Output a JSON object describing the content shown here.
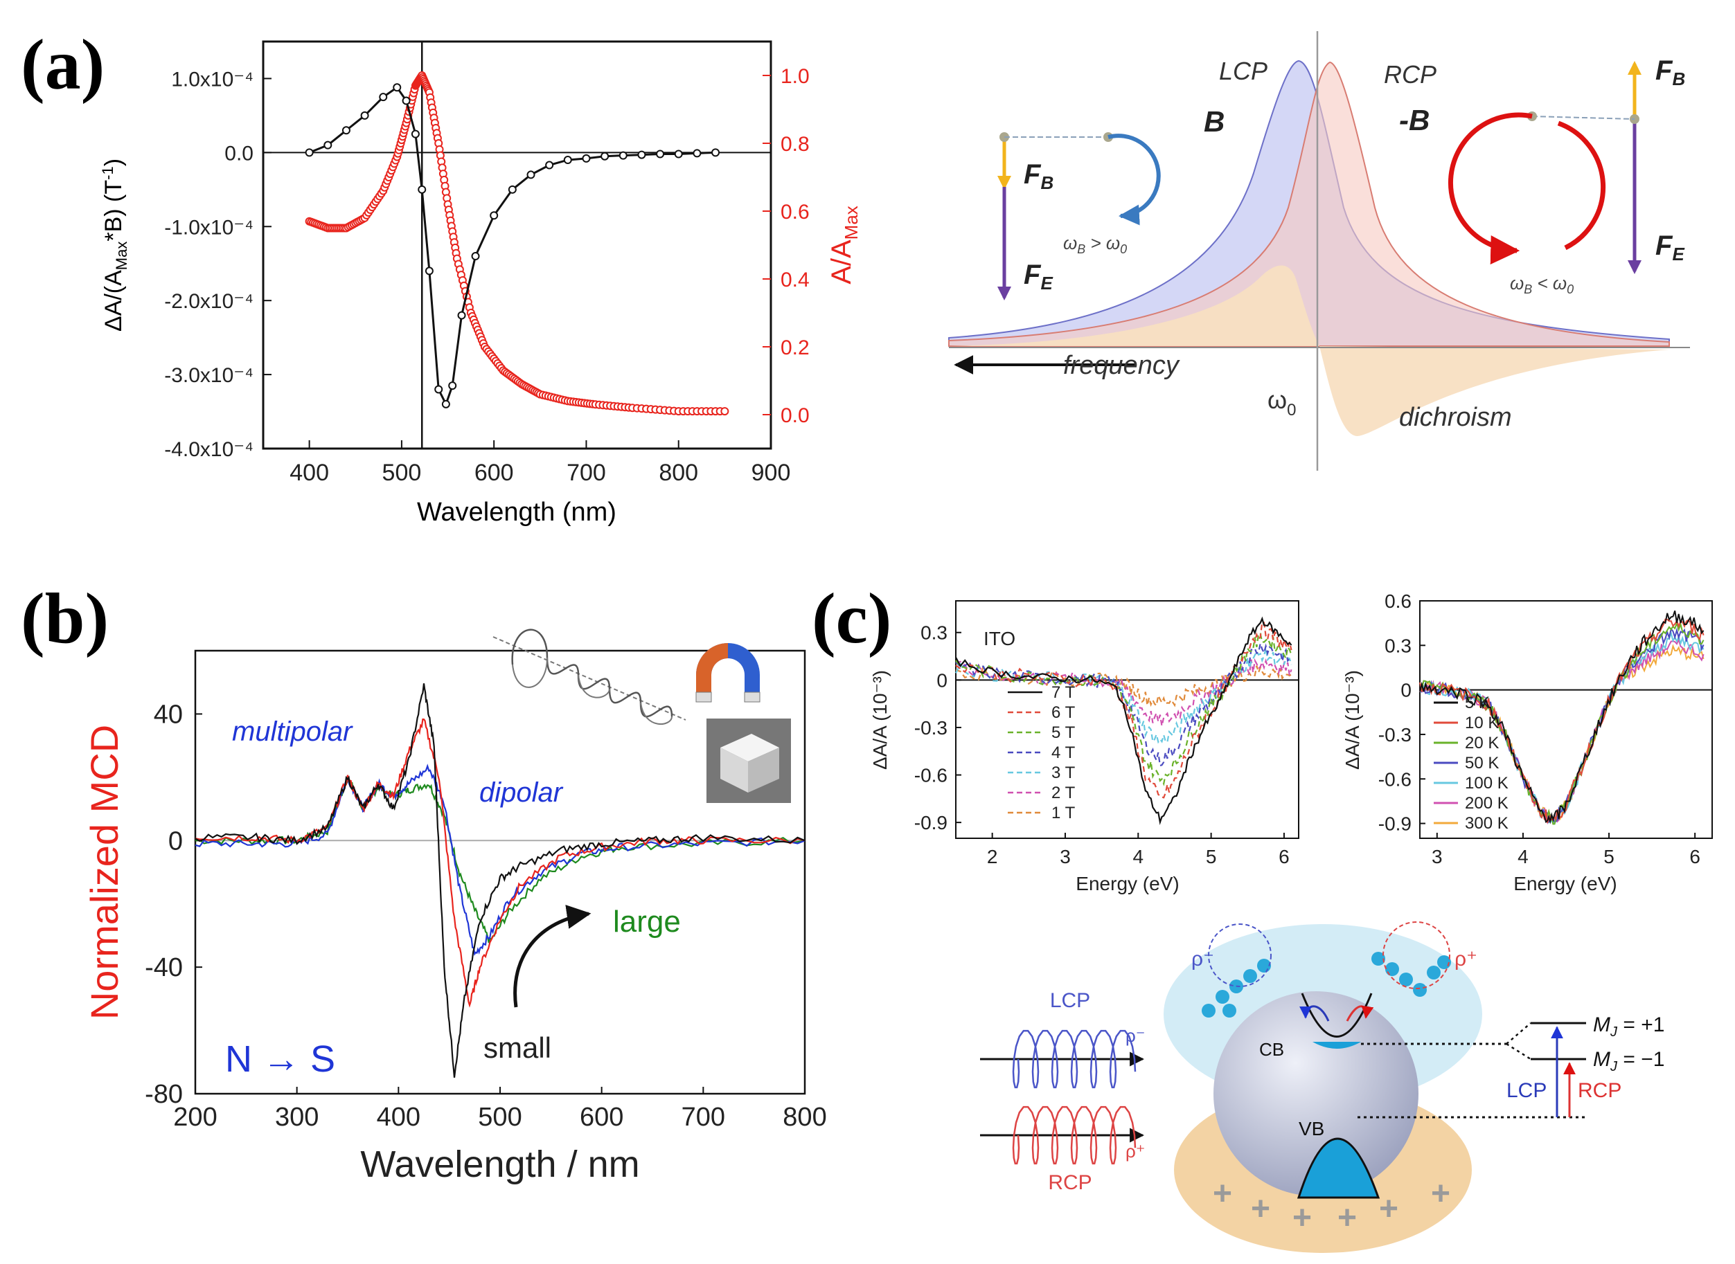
{
  "panel_labels": {
    "a": "(a)",
    "b": "(b)",
    "c": "(c)"
  },
  "colors": {
    "red": "#e8241d",
    "black": "#111111",
    "blue": "#1f35d6",
    "green": "#1e8a1e",
    "lcp_fill": "#c6c9f3",
    "rcp_fill": "#f6c9c2",
    "dichroism_fill": "#f8dfc2",
    "arrow_yellow": "#f2b41c",
    "arrow_purple": "#6a3fa0"
  },
  "chart_data": [
    {
      "id": "a-left",
      "type": "line",
      "xlabel": "Wavelength  (nm)",
      "ylabel_left": "ΔA/(A_Max*B) (T⁻¹)",
      "ylabel_right": "A/A_Max",
      "xlim": [
        350,
        900
      ],
      "ylim_left": [
        -0.0004,
        0.00015
      ],
      "ylim_right": [
        -0.1,
        1.1
      ],
      "x_ticks": [
        "400",
        "500",
        "600",
        "700",
        "800",
        "900"
      ],
      "y_ticks_left": [
        "1.0x10⁻⁴",
        "0.0",
        "-1.0x10⁻⁴",
        "-2.0x10⁻⁴",
        "-3.0x10⁻⁴",
        "-4.0x10⁻⁴"
      ],
      "y_ticks_right": [
        "1.0",
        "0.8",
        "0.6",
        "0.4",
        "0.2",
        "0.0"
      ],
      "vertical_line_x": 522,
      "series": [
        {
          "name": "ΔA/(A_Max*B)",
          "axis": "left",
          "color": "#111111",
          "x": [
            400,
            420,
            440,
            460,
            480,
            495,
            505,
            515,
            522,
            530,
            540,
            548,
            555,
            565,
            580,
            600,
            620,
            640,
            660,
            680,
            700,
            720,
            740,
            760,
            780,
            800,
            820,
            840
          ],
          "y": [
            0.0,
            1e-05,
            3e-05,
            5e-05,
            7.5e-05,
            8.8e-05,
            7e-05,
            2.5e-05,
            -5e-05,
            -0.00016,
            -0.00032,
            -0.00034,
            -0.000315,
            -0.00022,
            -0.00014,
            -8.5e-05,
            -5e-05,
            -3e-05,
            -1.7e-05,
            -1e-05,
            -8e-06,
            -5e-06,
            -4e-06,
            -3e-06,
            -2e-06,
            -2e-06,
            -1e-06,
            0.0
          ]
        },
        {
          "name": "A/A_Max",
          "axis": "right",
          "color": "#e8241d",
          "x": [
            400,
            420,
            440,
            460,
            480,
            495,
            505,
            515,
            522,
            530,
            540,
            550,
            560,
            575,
            590,
            610,
            630,
            650,
            680,
            710,
            750,
            800,
            850
          ],
          "y": [
            0.57,
            0.55,
            0.55,
            0.58,
            0.66,
            0.76,
            0.86,
            0.97,
            1.0,
            0.95,
            0.8,
            0.62,
            0.46,
            0.3,
            0.2,
            0.13,
            0.09,
            0.06,
            0.04,
            0.03,
            0.02,
            0.01,
            0.01
          ]
        }
      ]
    },
    {
      "id": "b",
      "type": "line",
      "xlabel": "Wavelength  /  nm",
      "ylabel": "Normalized MCD",
      "xlim": [
        200,
        800
      ],
      "ylim": [
        -80,
        60
      ],
      "x_ticks": [
        "200",
        "300",
        "400",
        "500",
        "600",
        "700",
        "800"
      ],
      "y_ticks": [
        "40",
        "0",
        "-40",
        "-80"
      ],
      "series": [
        {
          "name": "small",
          "color": "#111111",
          "x": [
            200,
            260,
            300,
            330,
            350,
            365,
            380,
            395,
            410,
            425,
            435,
            445,
            455,
            465,
            480,
            500,
            520,
            560,
            600,
            650,
            700,
            800
          ],
          "y": [
            1,
            1,
            0,
            4,
            20,
            10,
            18,
            10,
            25,
            49,
            30,
            -40,
            -74,
            -50,
            -25,
            -12,
            -8,
            -3,
            -1,
            0,
            1,
            0
          ]
        },
        {
          "name": "red",
          "color": "#e8241d",
          "x": [
            200,
            260,
            300,
            330,
            350,
            365,
            380,
            395,
            410,
            425,
            440,
            455,
            470,
            480,
            500,
            520,
            560,
            600,
            650,
            700,
            800
          ],
          "y": [
            1,
            1,
            0,
            4,
            20,
            10,
            18,
            14,
            28,
            38,
            20,
            -25,
            -52,
            -40,
            -25,
            -14,
            -5,
            -2,
            0,
            0,
            0
          ]
        },
        {
          "name": "blue",
          "color": "#1f35d6",
          "x": [
            200,
            260,
            300,
            330,
            350,
            365,
            380,
            395,
            410,
            430,
            445,
            460,
            475,
            490,
            510,
            540,
            580,
            620,
            700,
            800
          ],
          "y": [
            -1,
            -1,
            -1,
            2,
            20,
            10,
            18,
            14,
            18,
            23,
            12,
            -15,
            -36,
            -30,
            -18,
            -10,
            -4,
            -2,
            -1,
            0
          ]
        },
        {
          "name": "large",
          "color": "#1e8a1e",
          "x": [
            200,
            260,
            300,
            330,
            350,
            365,
            380,
            395,
            410,
            430,
            445,
            460,
            475,
            490,
            510,
            540,
            580,
            620,
            700,
            800
          ],
          "y": [
            0,
            0,
            0,
            3,
            20,
            10,
            17,
            14,
            16,
            18,
            8,
            -10,
            -22,
            -32,
            -22,
            -12,
            -5,
            -2,
            -1,
            0
          ]
        }
      ],
      "annotations": [
        "multipolar",
        "dipolar",
        "large",
        "small",
        "N → S"
      ]
    },
    {
      "id": "c-left",
      "type": "line",
      "xlabel": "Energy (eV)",
      "ylabel": "ΔA/A (10⁻³)",
      "xlim": [
        1.5,
        6.2
      ],
      "ylim": [
        -1.0,
        0.5
      ],
      "x_ticks": [
        "2",
        "3",
        "4",
        "5",
        "6"
      ],
      "y_ticks": [
        "0.3",
        "0",
        "-0.3",
        "-0.6",
        "-0.9"
      ],
      "annotation": "ITO",
      "legend": [
        "7 T",
        "6 T",
        "5 T",
        "4 T",
        "3 T",
        "2 T",
        "1 T"
      ],
      "series_scales": [
        1.0,
        0.86,
        0.72,
        0.58,
        0.44,
        0.3,
        0.16
      ],
      "series_colors": [
        "#111111",
        "#e04a3a",
        "#6ab22a",
        "#4a4ac0",
        "#67c8e0",
        "#d050b0",
        "#e08a3a"
      ],
      "base_x": [
        1.5,
        2.0,
        2.5,
        3.0,
        3.4,
        3.7,
        3.9,
        4.1,
        4.3,
        4.5,
        4.7,
        4.9,
        5.1,
        5.3,
        5.5,
        5.7,
        5.9,
        6.1
      ],
      "base_y": [
        0.12,
        0.05,
        0.02,
        0.01,
        0.0,
        -0.05,
        -0.3,
        -0.7,
        -0.88,
        -0.75,
        -0.5,
        -0.3,
        -0.15,
        0.05,
        0.25,
        0.38,
        0.3,
        0.22
      ]
    },
    {
      "id": "c-right",
      "type": "line",
      "xlabel": "Energy (eV)",
      "ylabel": "ΔA/A (10⁻³)",
      "xlim": [
        2.8,
        6.2
      ],
      "ylim": [
        -1.0,
        0.6
      ],
      "x_ticks": [
        "3",
        "4",
        "5",
        "6"
      ],
      "y_ticks": [
        "0.6",
        "0.3",
        "0",
        "-0.3",
        "-0.6",
        "-0.9"
      ],
      "legend": [
        "5 K",
        "10 K",
        "20 K",
        "50 K",
        "100 K",
        "200 K",
        "300 K"
      ],
      "series_colors": [
        "#111111",
        "#e04a3a",
        "#6ab22a",
        "#4a4ac0",
        "#67c8e0",
        "#d050b0",
        "#f2a93b"
      ],
      "base_x": [
        2.8,
        3.0,
        3.3,
        3.6,
        3.8,
        4.0,
        4.2,
        4.35,
        4.5,
        4.7,
        4.9,
        5.1,
        5.3,
        5.5,
        5.7,
        5.9,
        6.1
      ],
      "base_y": [
        0.02,
        0.01,
        -0.02,
        -0.1,
        -0.3,
        -0.6,
        -0.82,
        -0.88,
        -0.78,
        -0.5,
        -0.2,
        0.05,
        0.25,
        0.38,
        0.5,
        0.48,
        0.4
      ]
    }
  ],
  "diagram_a": {
    "lcp_label": "LCP",
    "rcp_label": "RCP",
    "b_label": "B",
    "neg_b_label": "-B",
    "fb_label": "F",
    "fb_sub": "B",
    "fe_label": "F",
    "fe_sub": "E",
    "omega_left": "ω",
    "omega_left_sub": "B",
    "omega_left_rel": " > ω",
    "omega_left_sub2": "0",
    "omega_right": "ω",
    "omega_right_sub": "B",
    "omega_right_rel": " < ω",
    "omega_right_sub2": "0",
    "frequency_label": "frequency",
    "omega0_label": "ω",
    "omega0_sub": "0",
    "dichroism_label": "dichroism"
  },
  "diagram_b": {
    "multipolar": "multipolar",
    "dipolar": "dipolar",
    "large": "large",
    "small": "small",
    "n_to_s": "N → S"
  },
  "diagram_c": {
    "lcp": "LCP",
    "rcp": "RCP",
    "rho_minus": "ρ⁻",
    "rho_plus": "ρ⁺",
    "cb": "CB",
    "vb": "VB",
    "mj_plus": "M",
    "mj_plus_rest": " = +1",
    "mj_minus": "M",
    "mj_minus_rest": " = −1",
    "mj_sub": "J",
    "lcp_small": "LCP",
    "rcp_small": "RCP",
    "plus_sign": "+"
  }
}
